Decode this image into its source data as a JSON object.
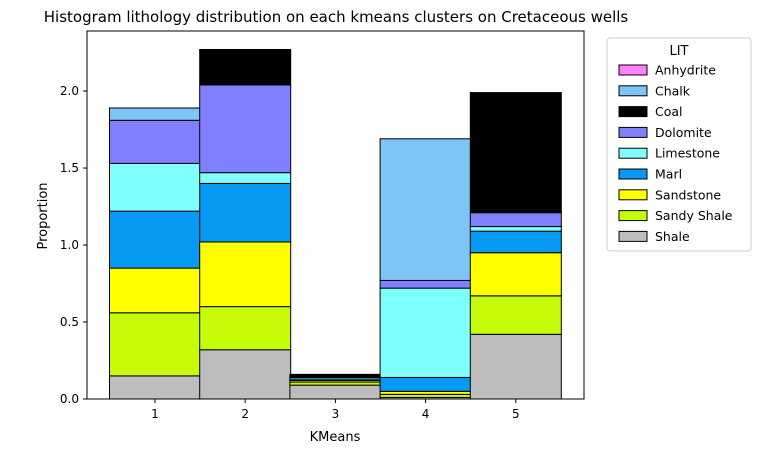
{
  "chart_data": {
    "type": "bar",
    "stacked": true,
    "title": "Histogram lithology distribution on each kmeans clusters on Cretaceous wells",
    "xlabel": "KMeans",
    "ylabel": "Proportion",
    "categories": [
      "1",
      "2",
      "3",
      "4",
      "5"
    ],
    "ylim": [
      0,
      2.39
    ],
    "yticks": [
      "0.0",
      "0.5",
      "1.0",
      "1.5",
      "2.0"
    ],
    "ytick_values": [
      0,
      0.5,
      1.0,
      1.5,
      2.0
    ],
    "grid": false,
    "legend": {
      "title": "LIT",
      "placement": "outside-right"
    },
    "series": [
      {
        "name": "Shale",
        "color": "#bdbdbd",
        "values": [
          0.15,
          0.32,
          0.09,
          0.01,
          0.42
        ]
      },
      {
        "name": "Sandy Shale",
        "color": "#c6fb0a",
        "values": [
          0.41,
          0.28,
          0.02,
          0.02,
          0.25
        ]
      },
      {
        "name": "Sandstone",
        "color": "#ffff00",
        "values": [
          0.29,
          0.42,
          0.01,
          0.02,
          0.28
        ]
      },
      {
        "name": "Marl",
        "color": "#069af3",
        "values": [
          0.37,
          0.38,
          0.01,
          0.09,
          0.14
        ]
      },
      {
        "name": "Limestone",
        "color": "#80ffff",
        "values": [
          0.31,
          0.07,
          0.01,
          0.58,
          0.03
        ]
      },
      {
        "name": "Dolomite",
        "color": "#8080ff",
        "values": [
          0.28,
          0.57,
          0.0,
          0.05,
          0.09
        ]
      },
      {
        "name": "Coal",
        "color": "#000000",
        "values": [
          0.0,
          0.23,
          0.02,
          0.0,
          0.78
        ]
      },
      {
        "name": "Chalk",
        "color": "#7cc5f5",
        "values": [
          0.08,
          0.0,
          0.0,
          0.92,
          0.0
        ]
      },
      {
        "name": "Anhydrite",
        "color": "#ff80ff",
        "values": [
          0.0,
          0.0,
          0.0,
          0.0,
          0.0
        ]
      }
    ],
    "legend_order": [
      "Anhydrite",
      "Chalk",
      "Coal",
      "Dolomite",
      "Limestone",
      "Marl",
      "Sandstone",
      "Sandy Shale",
      "Shale"
    ]
  }
}
